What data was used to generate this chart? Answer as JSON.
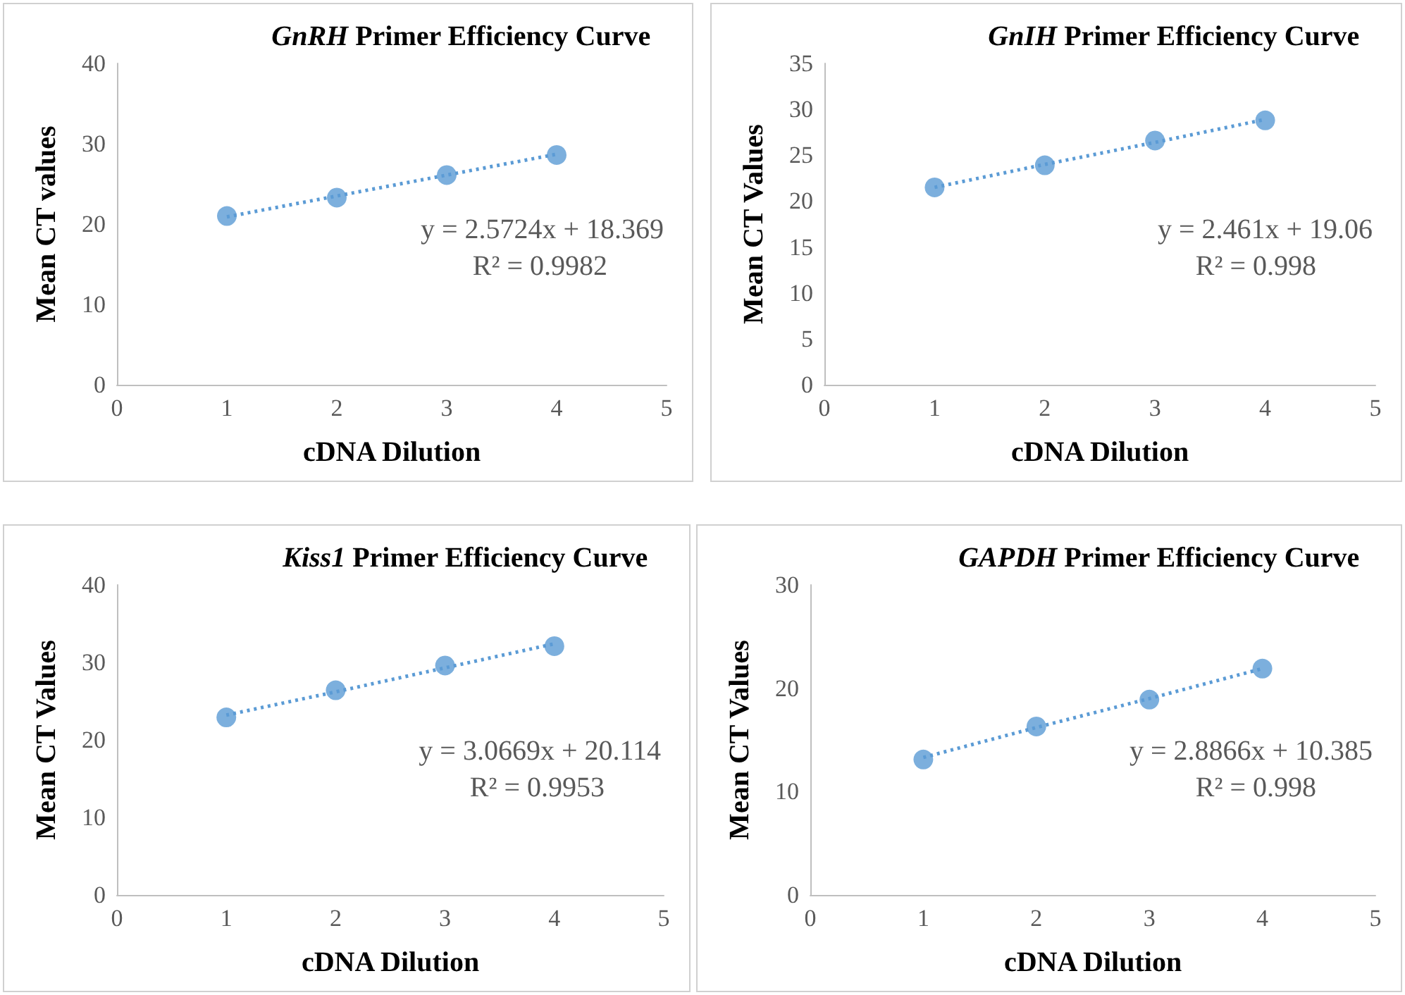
{
  "chart_data": [
    {
      "type": "scatter",
      "title": "GnRH Primer Efficiency Curve",
      "xlabel": "cDNA Dilution",
      "ylabel": "Mean CT values",
      "x": [
        1,
        2,
        3,
        4
      ],
      "xlim": [
        0,
        5
      ],
      "xticks": [
        0,
        1,
        2,
        3,
        4,
        5
      ],
      "ylim": [
        0,
        40
      ],
      "yticks": [
        0,
        10,
        20,
        30,
        40
      ],
      "grid": false,
      "marker": "circle",
      "series": [
        {
          "color": "#5b9bd5",
          "values": [
            21.0,
            23.3,
            26.1,
            28.6
          ]
        },
        {
          "type": "line",
          "color": "#5b9bd5",
          "line_style": "dotted",
          "marker": "none",
          "values": [
            20.9,
            23.5,
            26.1,
            28.7
          ]
        }
      ],
      "annotations": [
        "y = 2.5724x + 18.369",
        "R² = 0.9982"
      ]
    },
    {
      "type": "scatter",
      "title": "GnIH Primer Efficiency Curve",
      "xlabel": "cDNA Dilution",
      "ylabel": "Mean CT Values",
      "x": [
        1,
        2,
        3,
        4
      ],
      "xlim": [
        0,
        5
      ],
      "xticks": [
        0,
        1,
        2,
        3,
        4,
        5
      ],
      "ylim": [
        0,
        35
      ],
      "yticks": [
        0,
        5,
        10,
        15,
        20,
        25,
        30,
        35
      ],
      "grid": false,
      "marker": "circle",
      "series": [
        {
          "color": "#5b9bd5",
          "values": [
            21.5,
            23.9,
            26.6,
            28.8
          ]
        },
        {
          "type": "line",
          "color": "#5b9bd5",
          "line_style": "dotted",
          "marker": "none",
          "values": [
            21.5,
            24.0,
            26.4,
            28.9
          ]
        }
      ],
      "annotations": [
        "y = 2.461x + 19.06",
        "R² = 0.998"
      ]
    },
    {
      "type": "scatter",
      "title": "Kiss1 Primer Efficiency Curve",
      "xlabel": "cDNA Dilution",
      "ylabel": "Mean CT Values",
      "x": [
        1,
        2,
        3,
        4
      ],
      "xlim": [
        0,
        5
      ],
      "xticks": [
        0,
        1,
        2,
        3,
        4,
        5
      ],
      "ylim": [
        0,
        40
      ],
      "yticks": [
        0,
        10,
        20,
        30,
        40
      ],
      "grid": false,
      "marker": "circle",
      "series": [
        {
          "color": "#5b9bd5",
          "values": [
            22.9,
            26.4,
            29.6,
            32.1
          ]
        },
        {
          "type": "line",
          "color": "#5b9bd5",
          "line_style": "dotted",
          "marker": "none",
          "values": [
            23.2,
            26.2,
            29.3,
            32.4
          ]
        }
      ],
      "annotations": [
        "y = 3.0669x + 20.114",
        "R² = 0.9953"
      ]
    },
    {
      "type": "scatter",
      "title": "GAPDH Primer Efficiency Curve",
      "xlabel": "cDNA Dilution",
      "ylabel": "Mean CT Values",
      "x": [
        1,
        2,
        3,
        4
      ],
      "xlim": [
        0,
        5
      ],
      "xticks": [
        0,
        1,
        2,
        3,
        4,
        5
      ],
      "ylim": [
        0,
        30
      ],
      "yticks": [
        0,
        10,
        20,
        30
      ],
      "grid": false,
      "marker": "circle",
      "series": [
        {
          "color": "#5b9bd5",
          "values": [
            13.1,
            16.3,
            18.9,
            21.9
          ]
        },
        {
          "type": "line",
          "color": "#5b9bd5",
          "line_style": "dotted",
          "marker": "none",
          "values": [
            13.3,
            16.2,
            19.0,
            21.9
          ]
        }
      ],
      "annotations": [
        "y = 2.8866x + 10.385",
        "R² = 0.998"
      ]
    }
  ]
}
